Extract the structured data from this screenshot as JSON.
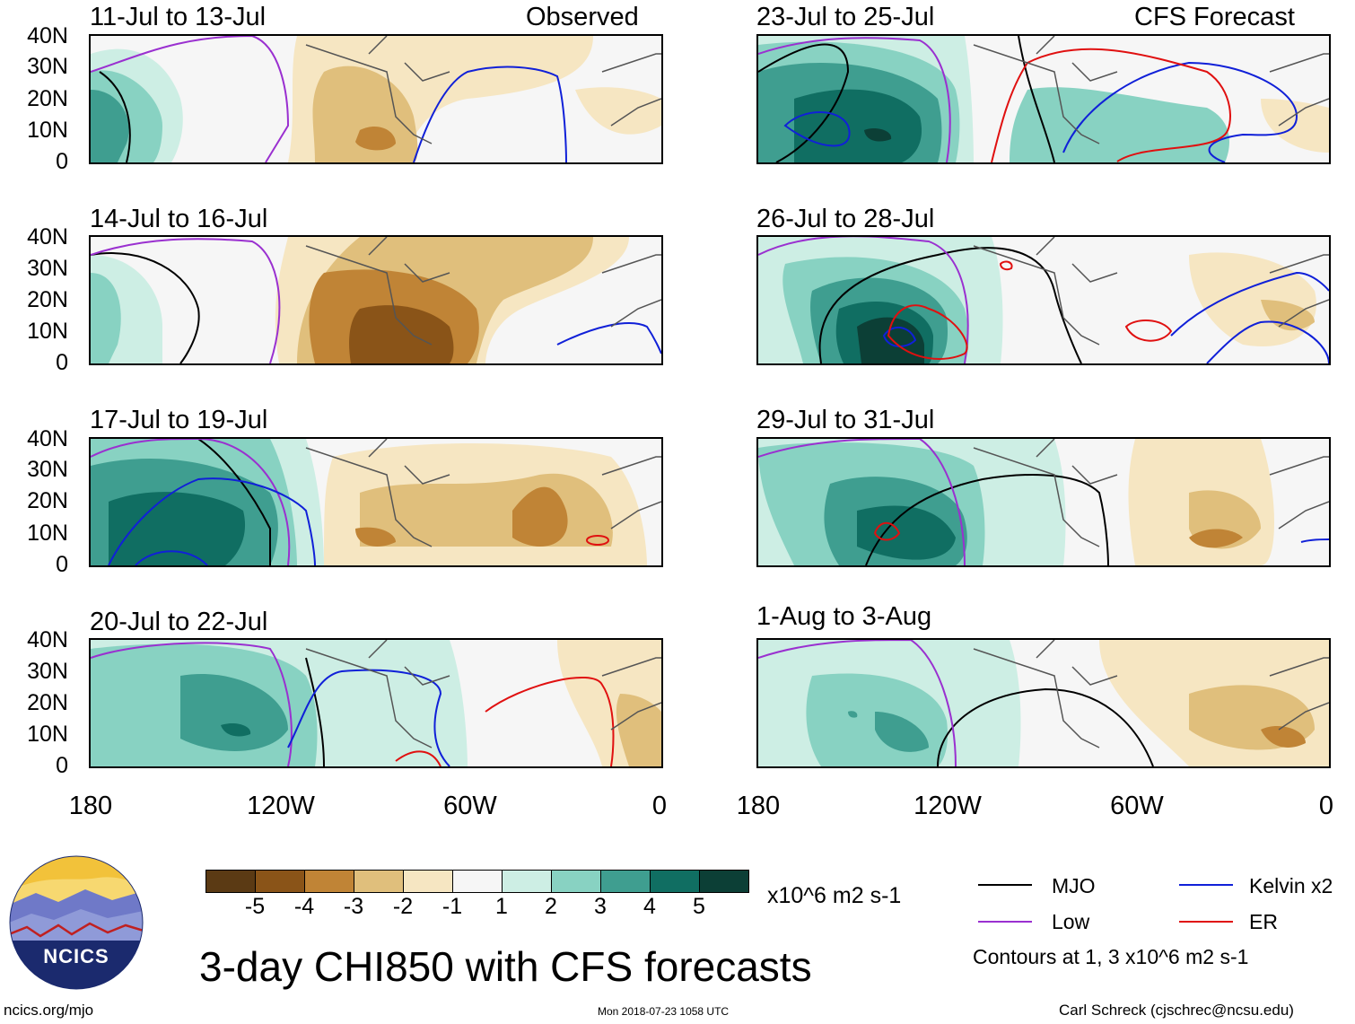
{
  "observed_label": "Observed",
  "forecast_label": "CFS Forecast",
  "panels_left": [
    {
      "title": "11-Jul to 13-Jul"
    },
    {
      "title": "14-Jul to 16-Jul"
    },
    {
      "title": "17-Jul to 19-Jul"
    },
    {
      "title": "20-Jul to 22-Jul"
    }
  ],
  "panels_right": [
    {
      "title": "23-Jul to 25-Jul"
    },
    {
      "title": "26-Jul to 28-Jul"
    },
    {
      "title": "29-Jul to 31-Jul"
    },
    {
      "title": "1-Aug to 3-Aug"
    }
  ],
  "lat_labels": [
    "40N",
    "30N",
    "20N",
    "10N",
    "0"
  ],
  "lon_labels": [
    "180",
    "120W",
    "60W",
    "0"
  ],
  "colorbar": {
    "ticks": [
      "-5",
      "-4",
      "-3",
      "-2",
      "-1",
      "1",
      "2",
      "3",
      "4",
      "5"
    ],
    "units": "x10^6 m2 s-1",
    "colors": [
      "#5b3a14",
      "#8a5418",
      "#c08436",
      "#e0bf7c",
      "#f6e6c2",
      "#f6f6f6",
      "#cdeee4",
      "#88d2c2",
      "#3f9e90",
      "#106e62",
      "#0c3f36"
    ]
  },
  "legend": {
    "mjo": "MJO",
    "low": "Low",
    "kelvin": "Kelvin x2",
    "er": "ER",
    "contours_note": "Contours at 1, 3 x10^6 m2 s-1",
    "mjo_color": "#000000",
    "low_color": "#9a30d0",
    "kelvin_color": "#1020d8",
    "er_color": "#e01010"
  },
  "main_title": "3-day CHI850 with CFS forecasts",
  "footer": {
    "website": "ncics.org/mjo",
    "timestamp": "Mon 2018-07-23 1058 UTC",
    "author": "Carl Schreck (cjschrec@ncsu.edu)"
  },
  "logo_text": "NCICS"
}
